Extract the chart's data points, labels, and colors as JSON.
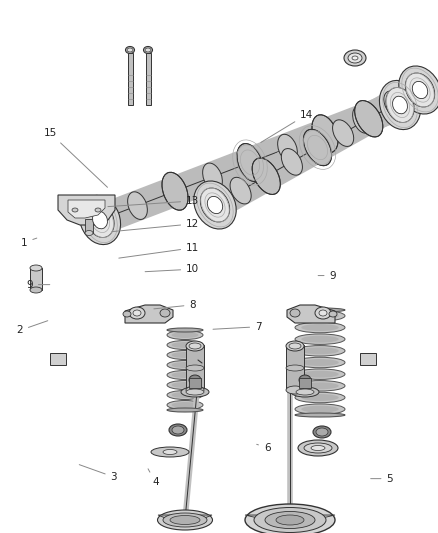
{
  "bg_color": "#ffffff",
  "fig_width": 4.38,
  "fig_height": 5.33,
  "dpi": 100,
  "lc": "#333333",
  "lc_thin": "#555555",
  "fill_light": "#e8e8e8",
  "fill_mid": "#c8c8c8",
  "fill_dark": "#a0a0a0",
  "label_fs": 7.5,
  "label_color": "#222222",
  "arrow_color": "#888888",
  "labels": {
    "1": [
      0.06,
      0.685,
      0.085,
      0.7
    ],
    "2": [
      0.05,
      0.785,
      0.115,
      0.8
    ],
    "3": [
      0.225,
      0.94,
      0.175,
      0.92
    ],
    "4": [
      0.355,
      0.93,
      0.34,
      0.9
    ],
    "5": [
      0.885,
      0.92,
      0.84,
      0.915
    ],
    "6": [
      0.6,
      0.84,
      0.57,
      0.828
    ],
    "7": [
      0.57,
      0.618,
      0.49,
      0.63
    ],
    "8": [
      0.43,
      0.577,
      0.34,
      0.588
    ],
    "9a": [
      0.085,
      0.54,
      0.12,
      0.542
    ],
    "9b": [
      0.75,
      0.526,
      0.695,
      0.523
    ],
    "10": [
      0.43,
      0.51,
      0.31,
      0.518
    ],
    "11": [
      0.43,
      0.465,
      0.255,
      0.48
    ],
    "12": [
      0.43,
      0.418,
      0.24,
      0.43
    ],
    "13": [
      0.43,
      0.375,
      0.225,
      0.384
    ],
    "14": [
      0.7,
      0.21,
      0.57,
      0.28
    ],
    "15": [
      0.12,
      0.245,
      0.245,
      0.36
    ]
  }
}
